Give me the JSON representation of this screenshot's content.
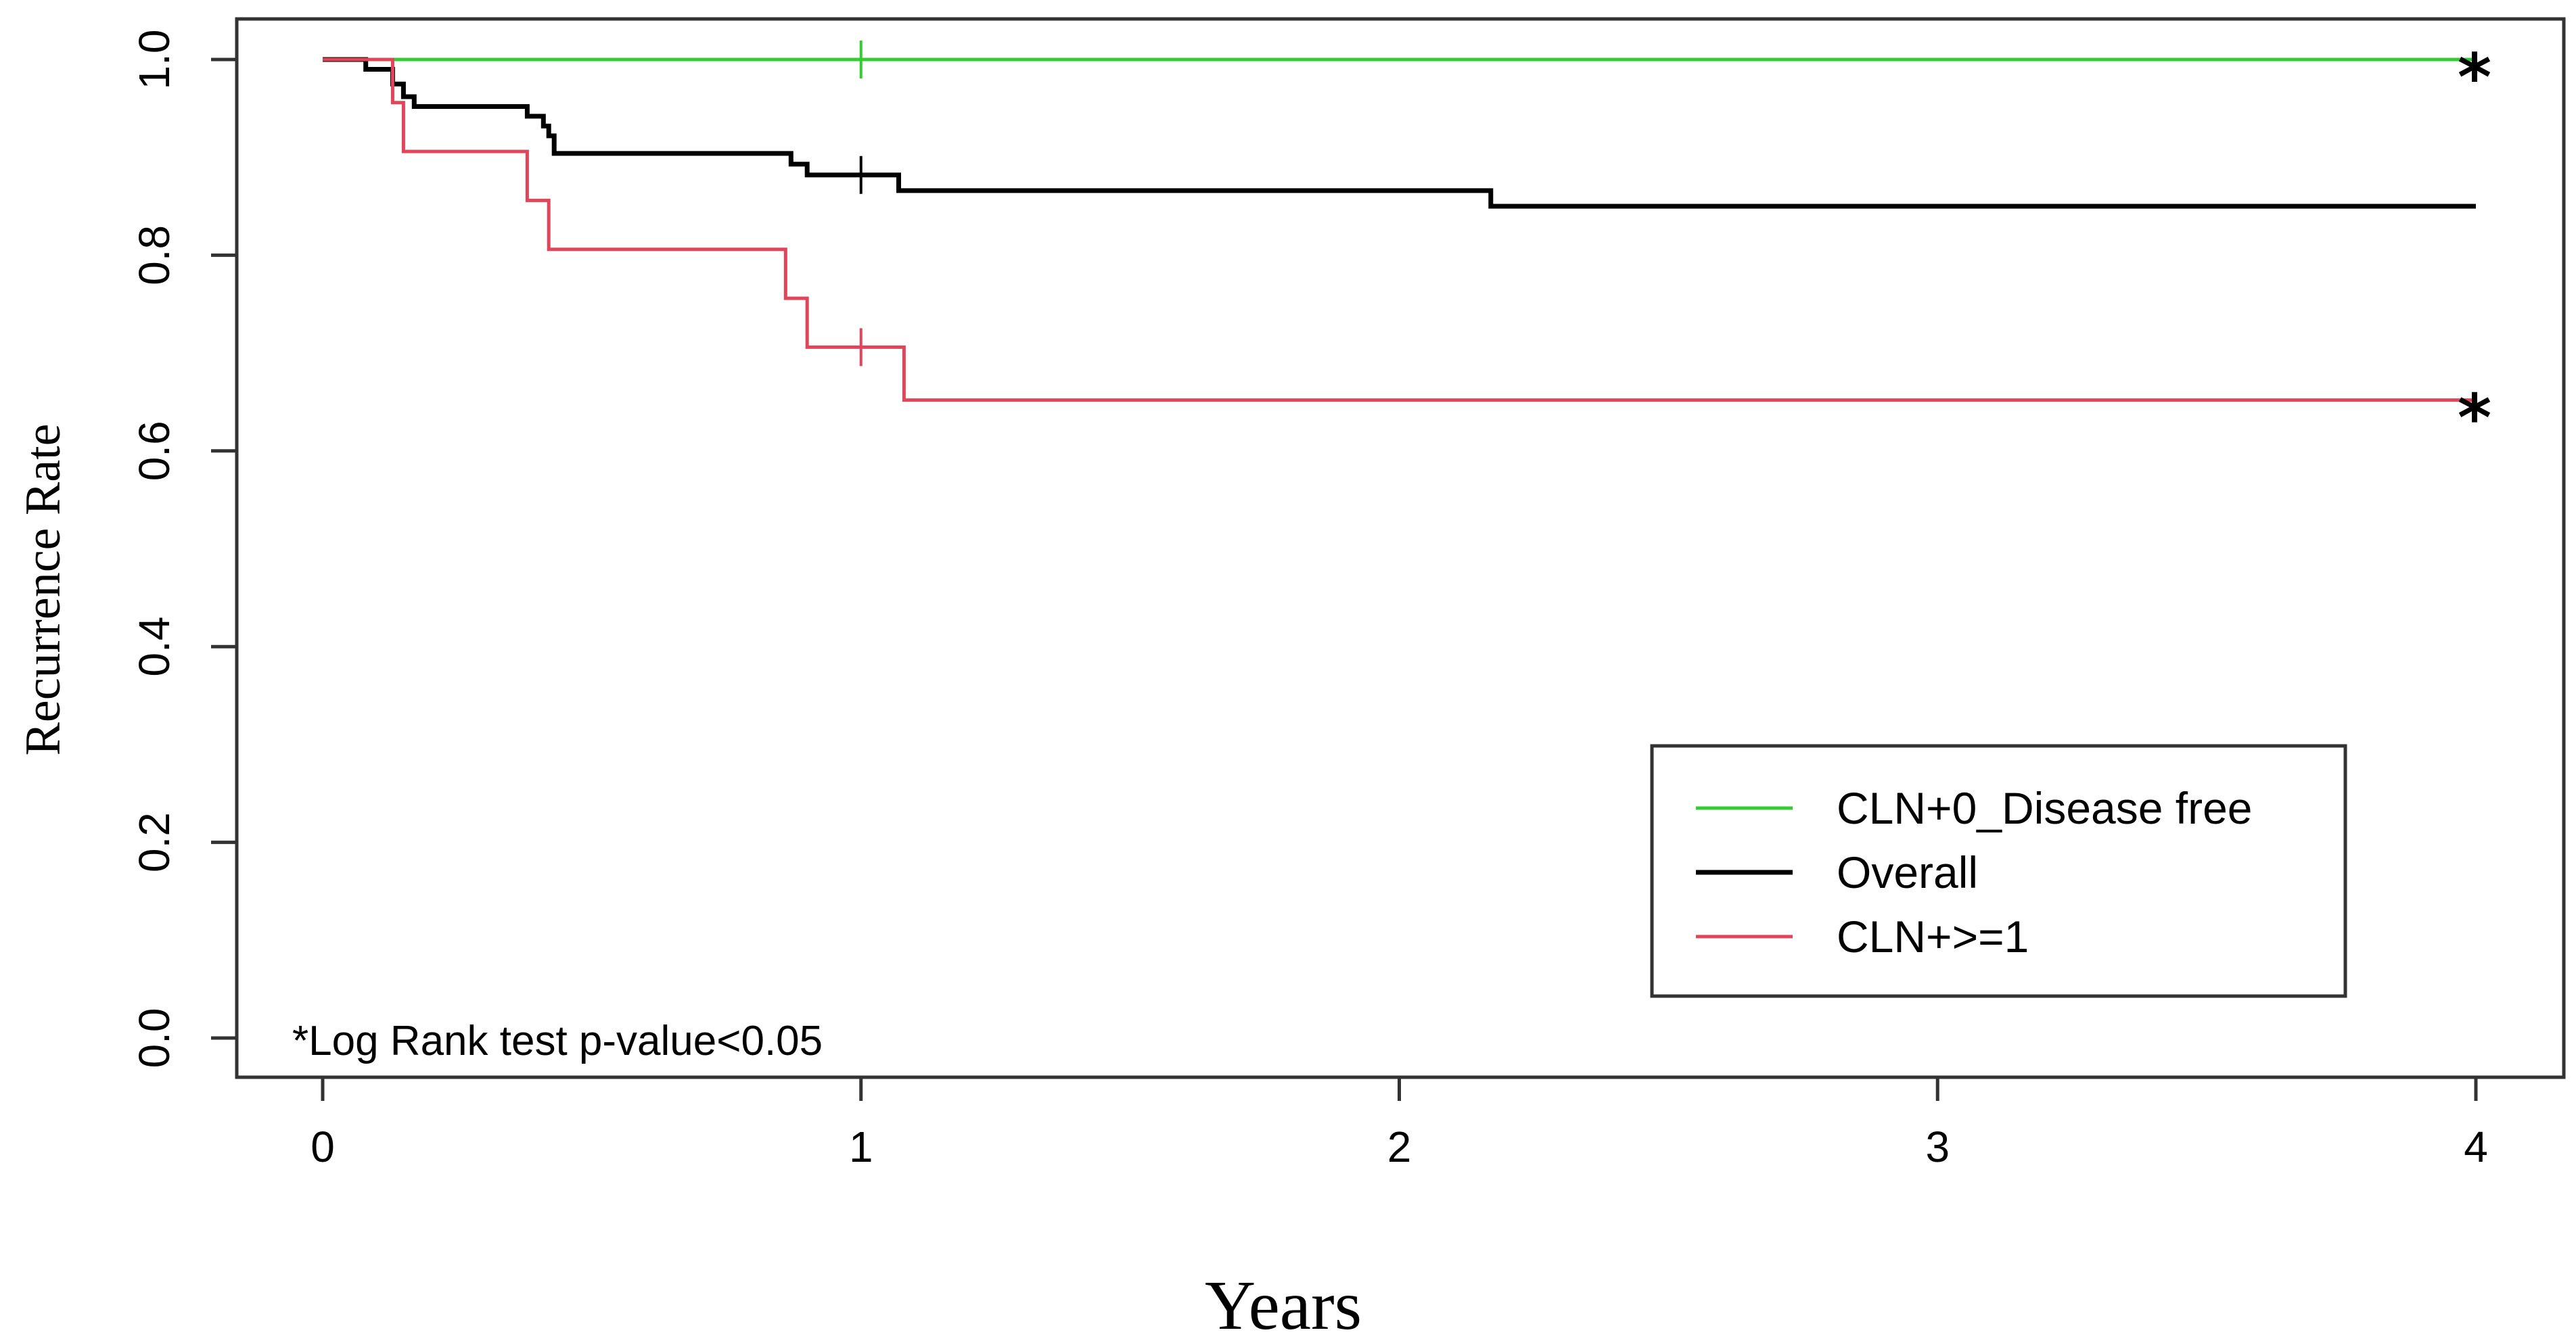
{
  "chart_data": {
    "type": "line",
    "subtype": "kaplan-meier step",
    "title": "",
    "xlabel": "Years",
    "ylabel": "Recurrence Rate",
    "xlim": [
      0,
      4
    ],
    "ylim": [
      0,
      1
    ],
    "x_ticks": [
      "0",
      "1",
      "2",
      "3",
      "4"
    ],
    "y_ticks": [
      "0.0",
      "0.2",
      "0.4",
      "0.6",
      "0.8",
      "1.0"
    ],
    "x_tick_values": [
      0,
      1,
      2,
      3,
      4
    ],
    "y_tick_values": [
      0,
      0.2,
      0.4,
      0.6,
      0.8,
      1.0
    ],
    "legend_position": "bottom-right",
    "annotation": "*Log Rank test p-value<0.05",
    "significance_marker": "*",
    "series": [
      {
        "name": "CLN+0_Disease free",
        "color": "#33cc33",
        "steps": [
          [
            0,
            1.0
          ],
          [
            4,
            1.0
          ]
        ],
        "censor_marks": [
          [
            1.0,
            1.0
          ]
        ],
        "significant": true
      },
      {
        "name": "Overall",
        "color": "#000000",
        "steps": [
          [
            0,
            1.0
          ],
          [
            0.08,
            1.0
          ],
          [
            0.08,
            0.99
          ],
          [
            0.13,
            0.99
          ],
          [
            0.13,
            0.975
          ],
          [
            0.15,
            0.975
          ],
          [
            0.15,
            0.962
          ],
          [
            0.17,
            0.962
          ],
          [
            0.17,
            0.952
          ],
          [
            0.38,
            0.952
          ],
          [
            0.38,
            0.942
          ],
          [
            0.41,
            0.942
          ],
          [
            0.41,
            0.932
          ],
          [
            0.42,
            0.932
          ],
          [
            0.42,
            0.922
          ],
          [
            0.43,
            0.922
          ],
          [
            0.43,
            0.904
          ],
          [
            0.87,
            0.904
          ],
          [
            0.87,
            0.893
          ],
          [
            0.9,
            0.893
          ],
          [
            0.9,
            0.882
          ],
          [
            1.07,
            0.882
          ],
          [
            1.07,
            0.866
          ],
          [
            2.17,
            0.866
          ],
          [
            2.17,
            0.85
          ],
          [
            4,
            0.85
          ]
        ],
        "censor_marks": [
          [
            1.0,
            0.882
          ]
        ],
        "significant": false
      },
      {
        "name": "CLN+>=1",
        "color": "#e0455a",
        "steps": [
          [
            0,
            1.0
          ],
          [
            0.13,
            1.0
          ],
          [
            0.13,
            0.956
          ],
          [
            0.15,
            0.956
          ],
          [
            0.15,
            0.906
          ],
          [
            0.38,
            0.906
          ],
          [
            0.38,
            0.856
          ],
          [
            0.42,
            0.856
          ],
          [
            0.42,
            0.806
          ],
          [
            0.86,
            0.806
          ],
          [
            0.86,
            0.756
          ],
          [
            0.9,
            0.756
          ],
          [
            0.9,
            0.706
          ],
          [
            1.08,
            0.706
          ],
          [
            1.08,
            0.652
          ],
          [
            4,
            0.652
          ]
        ],
        "censor_marks": [
          [
            1.0,
            0.706
          ]
        ],
        "significant": true
      }
    ]
  }
}
